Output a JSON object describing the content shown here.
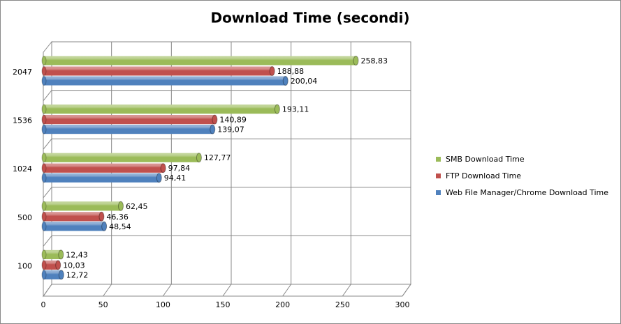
{
  "chart_data": {
    "type": "bar",
    "orientation": "horizontal",
    "title": "Download Time (secondi)",
    "categories": [
      "100",
      "500",
      "1024",
      "1536",
      "2047"
    ],
    "series": [
      {
        "name": "SMB Download Time",
        "color": "#9bbb59",
        "values": [
          12.43,
          62.45,
          127.77,
          193.11,
          258.83
        ],
        "value_labels": [
          "12,43",
          "62,45",
          "127,77",
          "193,11",
          "258,83"
        ]
      },
      {
        "name": "FTP Download Time",
        "color": "#c0504d",
        "values": [
          10.03,
          46.36,
          97.84,
          140.89,
          188.88
        ],
        "value_labels": [
          "10,03",
          "46,36",
          "97,84",
          "140,89",
          "188,88"
        ]
      },
      {
        "name": "Web File Manager/Chrome Download Time",
        "color": "#4f81bd",
        "values": [
          12.72,
          48.54,
          94.41,
          139.07,
          200.04
        ],
        "value_labels": [
          "12,72",
          "48,54",
          "94,41",
          "139,07",
          "200,04"
        ]
      }
    ],
    "xlim": [
      0,
      300
    ],
    "xticks": [
      0,
      50,
      100,
      150,
      200,
      250,
      300
    ],
    "grid": true,
    "legend": "right"
  }
}
